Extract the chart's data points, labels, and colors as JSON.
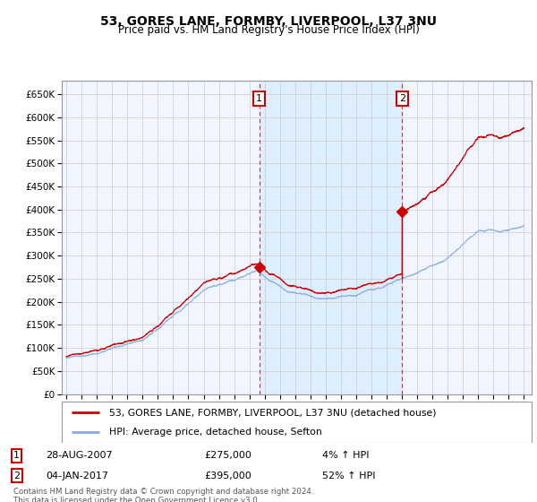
{
  "title": "53, GORES LANE, FORMBY, LIVERPOOL, L37 3NU",
  "subtitle": "Price paid vs. HM Land Registry's House Price Index (HPI)",
  "ylabel_ticks": [
    "£0",
    "£50K",
    "£100K",
    "£150K",
    "£200K",
    "£250K",
    "£300K",
    "£350K",
    "£400K",
    "£450K",
    "£500K",
    "£550K",
    "£600K",
    "£650K"
  ],
  "ytick_values": [
    0,
    50000,
    100000,
    150000,
    200000,
    250000,
    300000,
    350000,
    400000,
    450000,
    500000,
    550000,
    600000,
    650000
  ],
  "ylim_top": 680000,
  "xlim_start": 1994.7,
  "xlim_end": 2025.5,
  "sale1_date": 2007.65,
  "sale1_price": 275000,
  "sale2_date": 2017.02,
  "sale2_price": 395000,
  "annotation1_date": "28-AUG-2007",
  "annotation1_price": "£275,000",
  "annotation1_pct": "4% ↑ HPI",
  "annotation2_date": "04-JAN-2017",
  "annotation2_price": "£395,000",
  "annotation2_pct": "52% ↑ HPI",
  "legend_line1": "53, GORES LANE, FORMBY, LIVERPOOL, L37 3NU (detached house)",
  "legend_line2": "HPI: Average price, detached house, Sefton",
  "footer": "Contains HM Land Registry data © Crown copyright and database right 2024.\nThis data is licensed under the Open Government Licence v3.0.",
  "sale_color": "#cc0000",
  "hpi_color": "#88aadd",
  "shade_color": "#ddeeff",
  "plot_bg": "#ffffff",
  "grid_color": "#cccccc",
  "xticks": [
    1995,
    1996,
    1997,
    1998,
    1999,
    2000,
    2001,
    2002,
    2003,
    2004,
    2005,
    2006,
    2007,
    2008,
    2009,
    2010,
    2011,
    2012,
    2013,
    2014,
    2015,
    2016,
    2017,
    2018,
    2019,
    2020,
    2021,
    2022,
    2023,
    2024,
    2025
  ]
}
